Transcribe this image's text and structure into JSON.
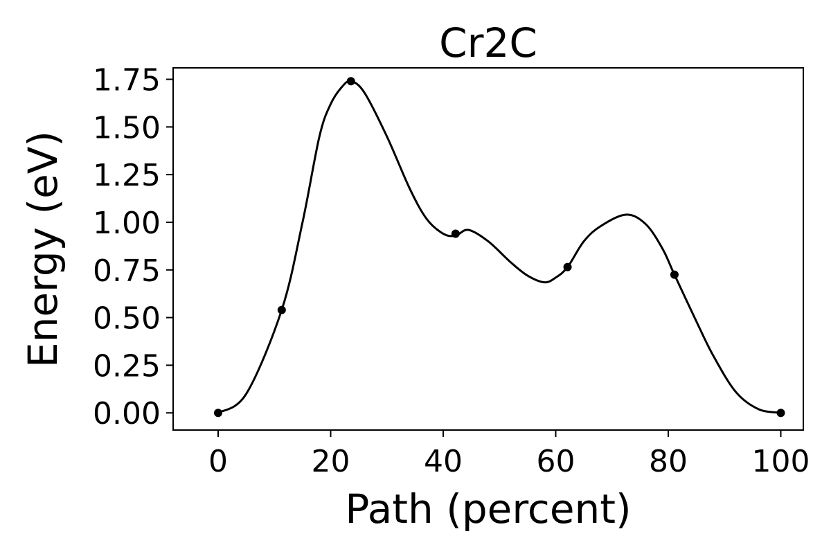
{
  "chart_data": {
    "type": "line",
    "title": "Cr2C",
    "xlabel": "Path (percent)",
    "ylabel": "Energy (eV)",
    "xlim": [
      -8,
      104
    ],
    "ylim": [
      -0.09,
      1.81
    ],
    "xticks": [
      0,
      20,
      40,
      60,
      80,
      100
    ],
    "xtick_labels": [
      "0",
      "20",
      "40",
      "60",
      "80",
      "100"
    ],
    "yticks": [
      0.0,
      0.25,
      0.5,
      0.75,
      1.0,
      1.25,
      1.5,
      1.75
    ],
    "ytick_labels": [
      "0.00",
      "0.25",
      "0.50",
      "0.75",
      "1.00",
      "1.25",
      "1.50",
      "1.75"
    ],
    "grid": false,
    "series": [
      {
        "marker": "dot",
        "x": [
          0,
          11.3,
          23.6,
          42.2,
          62.1,
          81.1,
          100
        ],
        "y": [
          0.0,
          0.54,
          1.74,
          0.94,
          0.765,
          0.725,
          0.0
        ]
      },
      {
        "style": "smooth-line",
        "x": [
          0,
          5,
          11.3,
          15,
          18,
          20,
          22,
          23.6,
          26,
          30,
          34,
          37,
          40,
          42.2,
          44.5,
          48,
          52,
          55,
          58,
          60,
          62.1,
          65,
          68,
          72.5,
          76,
          79,
          81.1,
          85,
          88,
          92,
          96,
          100
        ],
        "y": [
          0.0,
          0.1,
          0.54,
          1.0,
          1.45,
          1.62,
          1.71,
          1.74,
          1.68,
          1.45,
          1.18,
          1.02,
          0.94,
          0.93,
          0.96,
          0.9,
          0.79,
          0.72,
          0.685,
          0.71,
          0.765,
          0.9,
          0.98,
          1.04,
          0.99,
          0.86,
          0.725,
          0.48,
          0.3,
          0.11,
          0.02,
          0.0
        ]
      }
    ]
  }
}
